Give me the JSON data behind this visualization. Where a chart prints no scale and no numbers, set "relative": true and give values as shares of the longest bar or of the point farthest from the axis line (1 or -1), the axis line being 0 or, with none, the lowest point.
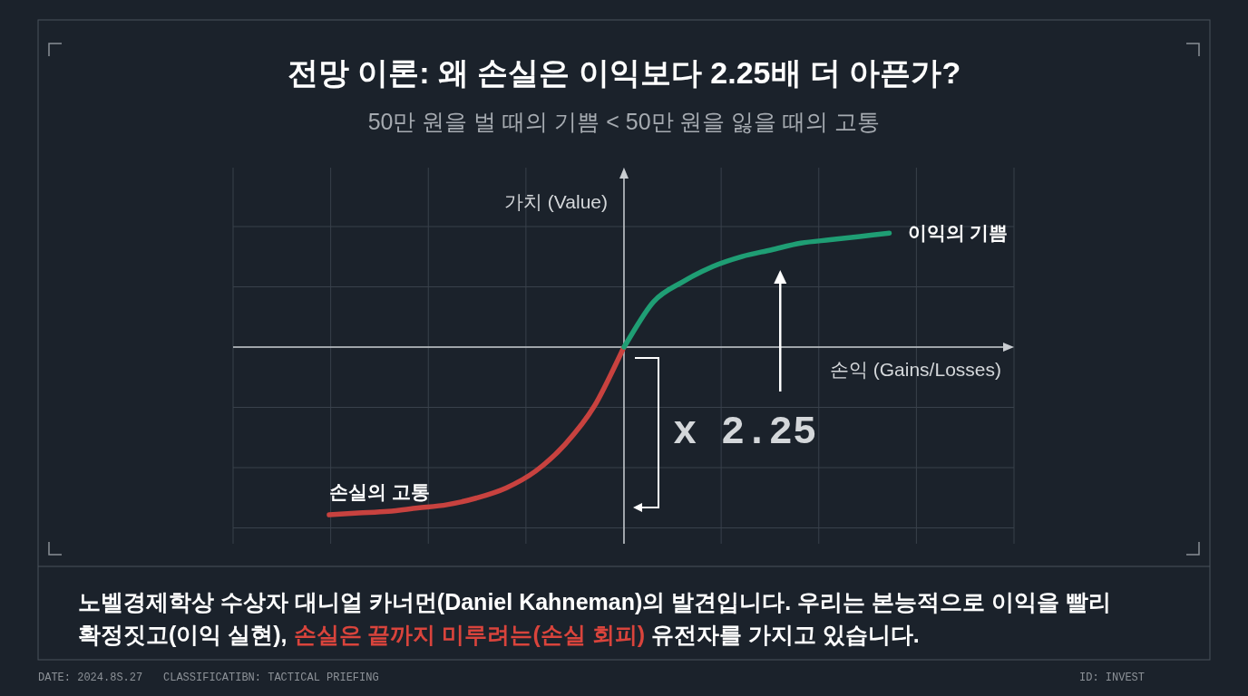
{
  "chart_data": {
    "type": "line",
    "title": "전망 이론: 왜 손실은 이익보다 2.25배 더 아픈가?",
    "subtitle": "50만 원을 벌 때의 기쁨 < 50만 원을 잃을 때의 고통",
    "xlabel": "손익 (Gains/Losses)",
    "ylabel": "가치 (Value)",
    "categories": [
      null,
      null,
      null,
      null,
      null,
      null,
      null,
      null,
      null,
      null,
      null,
      null,
      null,
      null,
      null,
      null,
      null,
      null,
      null,
      null
    ],
    "relative": true,
    "grid": true,
    "series": [
      {
        "name": "손실의 고통",
        "color": "#c8423f",
        "values": [
          -1.0,
          -0.99,
          -0.98,
          -0.96,
          -0.94,
          -0.9,
          -0.84,
          -0.74,
          -0.58,
          -0.35,
          0,
          null,
          null,
          null,
          null,
          null,
          null,
          null,
          null,
          null
        ]
      },
      {
        "name": "이익의 기쁨",
        "color": "#1f9e74",
        "values": [
          null,
          null,
          null,
          null,
          null,
          null,
          null,
          null,
          null,
          null,
          0,
          0.27,
          0.39,
          0.48,
          0.54,
          0.58,
          0.62,
          0.64,
          0.66,
          0.68
        ]
      }
    ],
    "annotations": [
      "x 2.25",
      "노벨경제학상 수상자 대니얼 카너먼(Daniel Kahneman)의 발견입니다. 우리는 본능적으로 이익을 빨리 확정짓고(이익 실현),",
      "손실은 끝까지 미루려는(손실 회피)",
      "유전자를 가지고 있습니다.",
      "DATE: 2024.8S.27",
      "CLASSIFICATIBN: TACTICAL PRIEFING",
      "ID: INVEST"
    ]
  }
}
